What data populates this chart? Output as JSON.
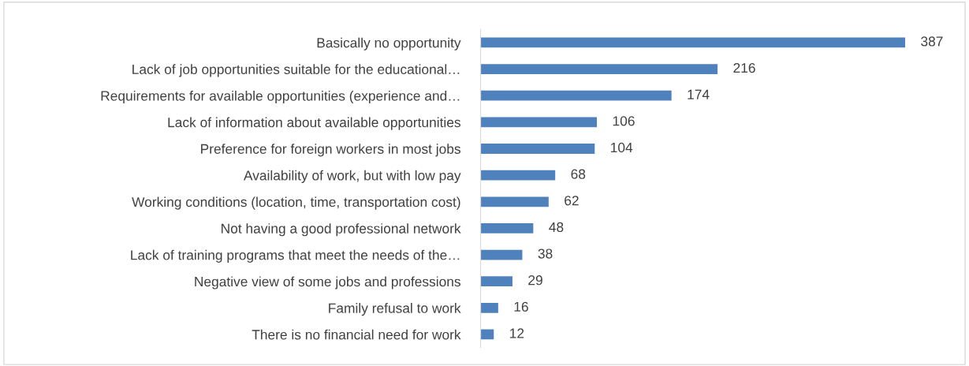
{
  "chart_data": {
    "type": "bar",
    "orientation": "horizontal",
    "categories": [
      "Basically no opportunity",
      "Lack of job opportunities suitable for the educational…",
      "Requirements for available opportunities (experience and…",
      "Lack of information about available opportunities",
      "Preference for foreign workers in most jobs",
      "Availability of work, but with low pay",
      "Working conditions (location, time, transportation cost)",
      "Not having a good professional network",
      "Lack of training programs that meet the needs of the…",
      "Negative view of some jobs and professions",
      "Family refusal to work",
      "There is no financial need for work"
    ],
    "values": [
      387,
      216,
      174,
      106,
      104,
      68,
      62,
      48,
      38,
      29,
      16,
      12
    ],
    "color": "#4f81bd",
    "data_labels": true,
    "tick_labels": "y",
    "grid": false,
    "legend": false
  }
}
